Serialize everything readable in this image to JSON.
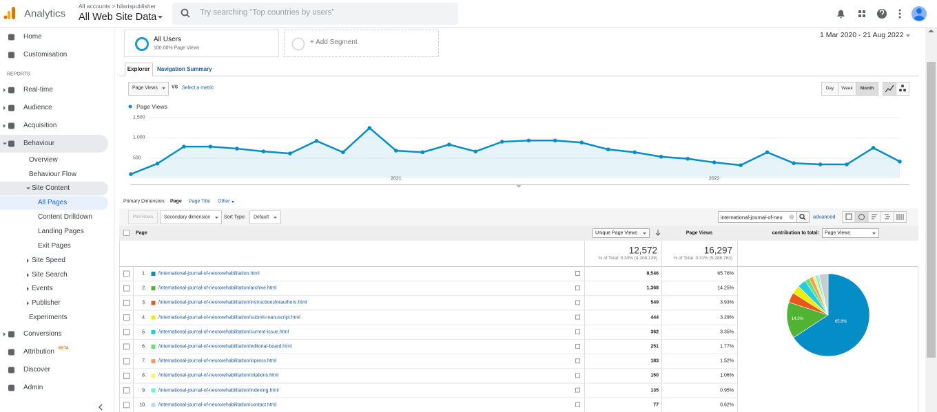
{
  "header": {
    "product": "Analytics",
    "breadcrumb": "All accounts > hilarispublisher",
    "view": "All Web Site Data",
    "search_placeholder": "Try searching “Top countries by users”"
  },
  "sidebar": {
    "reports_heading": "REPORTS",
    "badge": "BETA",
    "items": [
      "Home",
      "Customisation",
      "Real-time",
      "Audience",
      "Acquisition",
      "Behaviour",
      "Overview",
      "Behaviour Flow",
      "Site Content",
      "All Pages",
      "Content Drilldown",
      "Landing Pages",
      "Exit Pages",
      "Site Speed",
      "Site Search",
      "Events",
      "Publisher",
      "Experiments",
      "Conversions",
      "Attribution",
      "Discover",
      "Admin"
    ]
  },
  "segments": {
    "active": "All Users",
    "active_note": "100.00% Page Views",
    "add": "+ Add Segment"
  },
  "date_range": "1 Mar 2020 - 21 Aug 2022",
  "tabs": [
    "Explorer",
    "Navigation Summary"
  ],
  "controls": {
    "metric": "Page Views",
    "vs": "VS",
    "select_metric": "Select a metric",
    "intervals": [
      "Day",
      "Week",
      "Month"
    ]
  },
  "chart_data": [
    {
      "type": "line",
      "categories": [
        null,
        null,
        null,
        null,
        null,
        null,
        null,
        null,
        null,
        null,
        "2021",
        null,
        null,
        null,
        null,
        null,
        null,
        null,
        null,
        null,
        null,
        null,
        "2022",
        null,
        null,
        null,
        null,
        null,
        null,
        null
      ],
      "series": [
        {
          "name": "Page Views",
          "color": "#058dc7",
          "values": [
            100,
            360,
            780,
            780,
            730,
            660,
            610,
            920,
            640,
            1240,
            680,
            640,
            830,
            660,
            900,
            930,
            930,
            880,
            710,
            640,
            530,
            480,
            390,
            320,
            640,
            370,
            340,
            340,
            750,
            410
          ]
        }
      ],
      "ylim": [
        0,
        1700
      ],
      "yticks": [
        500,
        {
          "value": 1000,
          "label": "1,000"
        },
        {
          "value": 1500,
          "label": "1,500"
        }
      ],
      "grid": true
    },
    {
      "type": "pie",
      "values": [
        65.76,
        14.25,
        3.93,
        3.29,
        3.35,
        1.77,
        1.52,
        1.06,
        0.95,
        0.62,
        3.5
      ],
      "colors": [
        "#058dc7",
        "#50b432",
        "#ed561b",
        "#edef00",
        "#24cbe5",
        "#64e572",
        "#ff9655",
        "#fff263",
        "#6af9c4",
        "#b2deff",
        "#cccccc"
      ],
      "value_labels": [
        "65.8%",
        "14.2%",
        null,
        null,
        null,
        null,
        null,
        null,
        null,
        null,
        null
      ]
    }
  ],
  "table": {
    "primary_dimension_label": "Primary Dimension:",
    "dimensions": [
      "Page",
      "Page Title",
      "Other"
    ],
    "plot_rows": "Plot Rows",
    "secondary_dimension": "Secondary dimension",
    "sort_type_label": "Sort Type:",
    "sort_type": "Default",
    "search": "international-journal-of-neu",
    "advanced": "advanced",
    "columns": [
      "Page",
      "Unique Page Views",
      "Page Views",
      "contribution to total:",
      "Page Views"
    ],
    "totals": [
      {
        "value": "12,572",
        "note": "% of Total: 0.30% (4,208,139)"
      },
      {
        "value": "16,297",
        "note": "% of Total: 0.31% (5,288,763)"
      }
    ],
    "rows": [
      [
        "1.",
        "/international-journal-of-neurorehabilitation.html",
        "8,546",
        "65.76%"
      ],
      [
        "2.",
        "/international-journal-of-neurorehabilitation/archive.html",
        "1,368",
        "14.25%"
      ],
      [
        "3.",
        "/international-journal-of-neurorehabilitation/instructionsforauthors.html",
        "549",
        "3.93%"
      ],
      [
        "4.",
        "/international-journal-of-neurorehabilitation/submit-manuscript.html",
        "444",
        "3.29%"
      ],
      [
        "5.",
        "/international-journal-of-neurorehabilitation/current-issue.html",
        "362",
        "3.35%"
      ],
      [
        "6.",
        "/international-journal-of-neurorehabilitation/editorial-board.html",
        "251",
        "1.77%"
      ],
      [
        "7.",
        "/international-journal-of-neurorehabilitation/inpress.html",
        "183",
        "1.52%"
      ],
      [
        "8.",
        "/international-journal-of-neurorehabilitation/citations.html",
        "150",
        "1.06%"
      ],
      [
        "9.",
        "/international-journal-of-neurorehabilitation/indexing.html",
        "135",
        "0.95%"
      ],
      [
        "10.",
        "/international-journal-of-neurorehabilitation/contact.html",
        "77",
        "0.62%"
      ]
    ]
  }
}
